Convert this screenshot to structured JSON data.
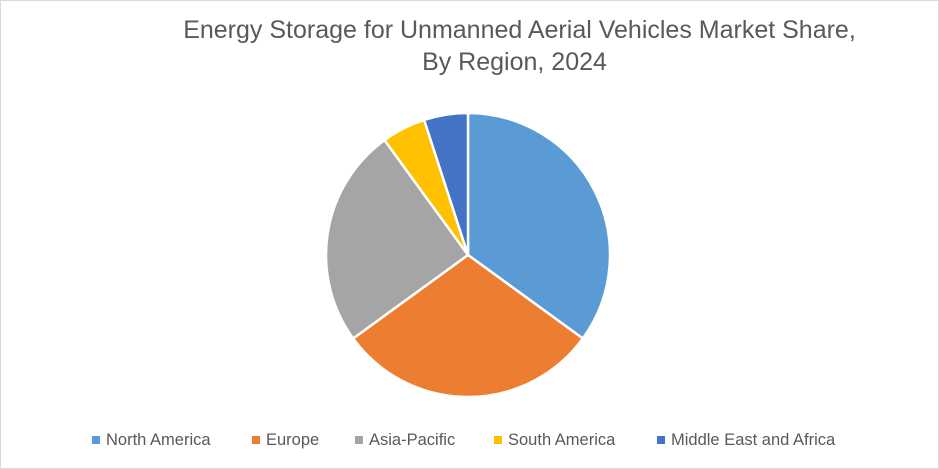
{
  "chart_data": {
    "type": "pie",
    "title_line1": "Energy Storage for Unmanned Aerial Vehicles Market Share,",
    "title_line2": "By Region, 2024",
    "categories": [
      "North America",
      "Europe",
      "Asia-Pacific",
      "South America",
      "Middle East and Africa"
    ],
    "values": [
      35,
      30,
      25,
      5,
      5
    ],
    "colors": [
      "#5b9bd5",
      "#ed7d31",
      "#a5a5a5",
      "#ffc000",
      "#4472c4"
    ],
    "legend_position": "bottom",
    "start_angle_deg": 0,
    "direction": "clockwise"
  }
}
